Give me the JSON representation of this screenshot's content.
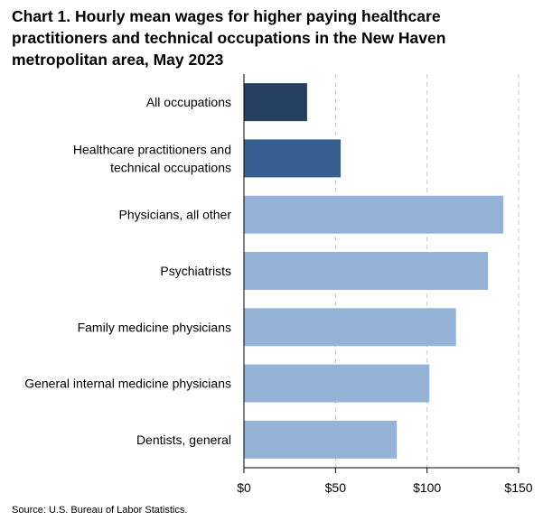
{
  "chart_data": {
    "type": "bar",
    "orientation": "horizontal",
    "title": "Chart 1. Hourly mean wages for higher paying healthcare practitioners and technical occupations in the New Haven metropolitan area, May 2023",
    "categories": [
      "All occupations",
      "Healthcare practitioners and technical occupations",
      "Physicians, all other",
      "Psychiatrists",
      "Family medicine physicians",
      "General internal medicine physicians",
      "Dentists, general"
    ],
    "category_lines": [
      [
        "All occupations"
      ],
      [
        "Healthcare practitioners and",
        "technical occupations"
      ],
      [
        "Physicians, all other"
      ],
      [
        "Psychiatrists"
      ],
      [
        "Family medicine physicians"
      ],
      [
        "General internal medicine physicians"
      ],
      [
        "Dentists, general"
      ]
    ],
    "values": [
      34.5,
      52.8,
      141.7,
      133.3,
      115.8,
      101.3,
      83.5
    ],
    "bar_colors": [
      "#253f60",
      "#365f92",
      "#95b3d7",
      "#95b3d7",
      "#95b3d7",
      "#95b3d7",
      "#95b3d7"
    ],
    "xlim": [
      0,
      150
    ],
    "xticks": [
      0,
      50,
      100,
      150
    ],
    "xtick_labels": [
      "$0",
      "$50",
      "$100",
      "$150"
    ],
    "xlabel": "",
    "ylabel": "",
    "grid": true,
    "grid_color": "#c8c8c8",
    "source": "Source: U.S. Bureau of Labor Statistics."
  }
}
